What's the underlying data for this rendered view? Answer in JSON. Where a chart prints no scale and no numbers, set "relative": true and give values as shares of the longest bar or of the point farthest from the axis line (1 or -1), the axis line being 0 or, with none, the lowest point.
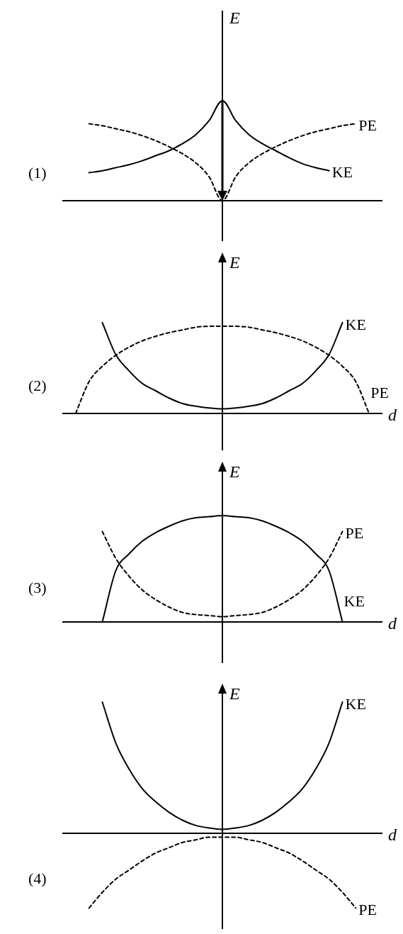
{
  "chart_data": [
    {
      "type": "line",
      "title": "(1)",
      "ylabel": "E",
      "relative": true,
      "marker": "none",
      "categories": [
        null,
        null,
        null,
        null,
        null,
        null,
        null,
        null,
        null,
        null,
        null,
        null,
        null,
        null,
        null,
        null,
        null,
        null,
        null,
        null,
        null,
        null,
        null,
        null,
        null
      ],
      "series": [
        {
          "name": "KE",
          "color": "#000000",
          "line_style": "solid",
          "values": [
            null,
            null,
            0.28,
            0.3,
            0.33,
            0.36,
            0.4,
            0.45,
            0.5,
            0.57,
            0.66,
            0.8,
            1,
            0.8,
            0.66,
            0.57,
            0.5,
            0.43,
            0.37,
            0.33,
            0.3,
            null,
            null,
            null,
            null
          ]
        },
        {
          "name": "PE",
          "color": "#000000",
          "line_style": "dashed",
          "values": [
            null,
            null,
            0.77,
            0.75,
            0.72,
            0.69,
            0.65,
            0.6,
            0.54,
            0.47,
            0.38,
            0.24,
            0,
            0.24,
            0.38,
            0.47,
            0.54,
            0.6,
            0.65,
            0.69,
            0.72,
            0.75,
            0.77,
            null,
            null
          ]
        }
      ]
    },
    {
      "type": "line",
      "title": "(2)",
      "ylabel": "E",
      "xlabel": "d",
      "relative": true,
      "marker": "none",
      "categories": [
        null,
        null,
        null,
        null,
        null,
        null,
        null,
        null,
        null,
        null,
        null,
        null,
        null,
        null,
        null,
        null,
        null,
        null,
        null,
        null,
        null,
        null,
        null,
        null,
        null
      ],
      "series": [
        {
          "name": "KE",
          "color": "#000000",
          "line_style": "solid",
          "values": [
            null,
            null,
            null,
            1,
            0.65,
            0.47,
            0.33,
            0.25,
            0.17,
            0.11,
            0.08,
            0.06,
            0.05,
            0.06,
            0.08,
            0.11,
            0.17,
            0.25,
            0.33,
            0.47,
            0.65,
            1,
            null,
            null,
            null
          ]
        },
        {
          "name": "PE",
          "color": "#000000",
          "line_style": "dashed",
          "values": [
            null,
            0,
            0.35,
            0.52,
            0.64,
            0.73,
            0.8,
            0.85,
            0.89,
            0.92,
            0.95,
            0.96,
            0.96,
            0.96,
            0.95,
            0.92,
            0.89,
            0.85,
            0.8,
            0.73,
            0.64,
            0.52,
            0.35,
            0,
            null
          ]
        }
      ]
    },
    {
      "type": "line",
      "title": "(3)",
      "ylabel": "E",
      "xlabel": "d",
      "relative": true,
      "marker": "none",
      "categories": [
        null,
        null,
        null,
        null,
        null,
        null,
        null,
        null,
        null,
        null,
        null,
        null,
        null,
        null,
        null,
        null,
        null,
        null,
        null,
        null,
        null,
        null,
        null,
        null,
        null
      ],
      "series": [
        {
          "name": "PE",
          "color": "#000000",
          "line_style": "dashed",
          "values": [
            null,
            null,
            null,
            0.85,
            0.6,
            0.43,
            0.3,
            0.21,
            0.14,
            0.09,
            0.07,
            0.06,
            0.05,
            0.06,
            0.07,
            0.09,
            0.14,
            0.21,
            0.3,
            0.43,
            0.6,
            0.85,
            null,
            null,
            null
          ]
        },
        {
          "name": "KE",
          "color": "#000000",
          "line_style": "solid",
          "values": [
            null,
            null,
            null,
            0,
            0.48,
            0.64,
            0.76,
            0.84,
            0.9,
            0.95,
            0.98,
            0.99,
            1,
            0.99,
            0.98,
            0.95,
            0.9,
            0.84,
            0.76,
            0.64,
            0.48,
            0,
            null,
            null,
            null
          ]
        }
      ]
    },
    {
      "type": "line",
      "title": "(4)",
      "ylabel": "E",
      "xlabel": "d",
      "relative": true,
      "marker": "none",
      "categories": [
        null,
        null,
        null,
        null,
        null,
        null,
        null,
        null,
        null,
        null,
        null,
        null,
        null,
        null,
        null,
        null,
        null,
        null,
        null,
        null,
        null,
        null,
        null,
        null,
        null
      ],
      "series": [
        {
          "name": "KE",
          "color": "#000000",
          "line_style": "solid",
          "values": [
            null,
            null,
            null,
            1,
            0.69,
            0.49,
            0.34,
            0.24,
            0.16,
            0.1,
            0.06,
            0.04,
            0.03,
            0.04,
            0.06,
            0.1,
            0.16,
            0.24,
            0.34,
            0.49,
            0.69,
            1,
            null,
            null,
            null
          ]
        },
        {
          "name": "PE",
          "color": "#000000",
          "line_style": "dashed",
          "values": [
            null,
            null,
            -0.57,
            -0.45,
            -0.35,
            -0.28,
            -0.21,
            -0.15,
            -0.11,
            -0.07,
            -0.05,
            -0.03,
            -0.03,
            -0.03,
            -0.05,
            -0.07,
            -0.11,
            -0.15,
            -0.21,
            -0.28,
            -0.35,
            -0.45,
            -0.57,
            null,
            null
          ]
        }
      ]
    }
  ]
}
